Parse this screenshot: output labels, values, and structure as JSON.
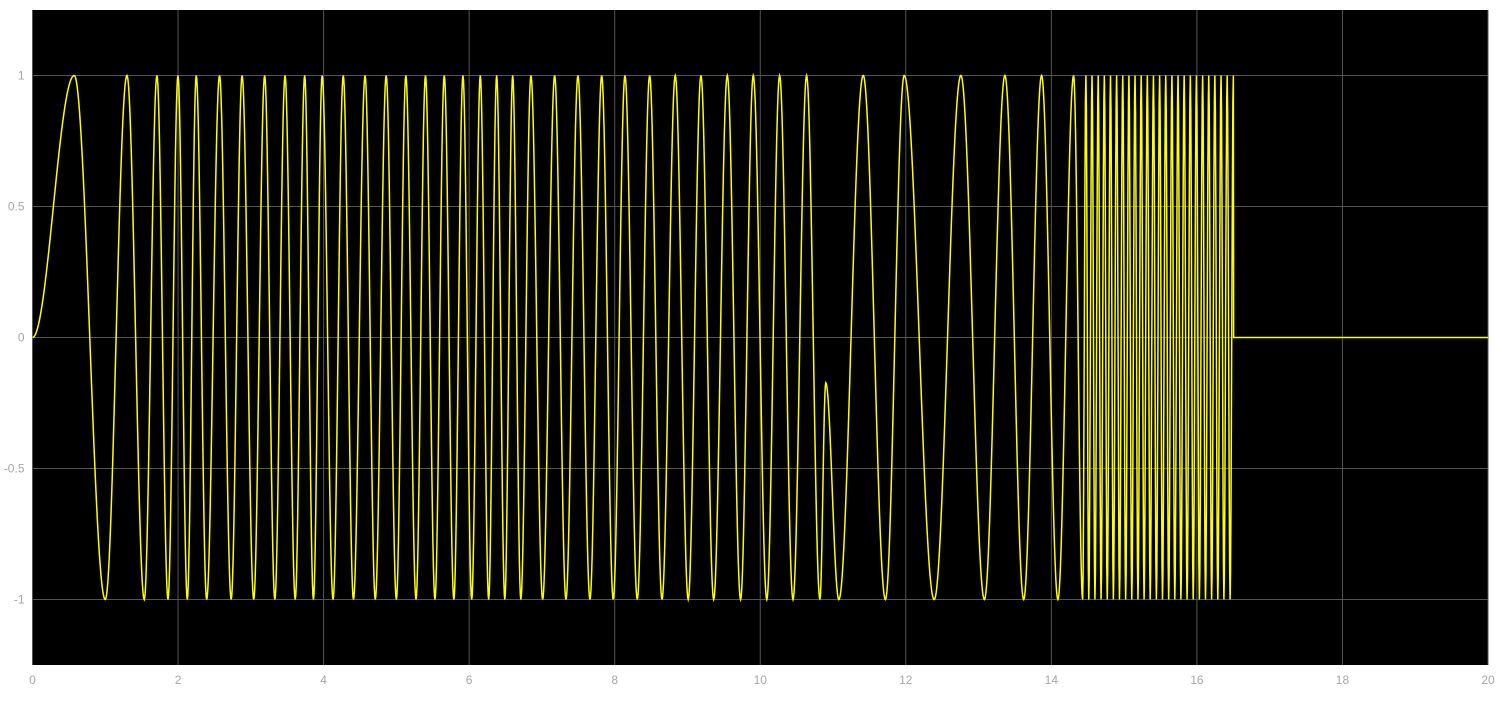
{
  "chart_data": {
    "type": "line",
    "title": "",
    "xlabel": "",
    "ylabel": "",
    "xlim": [
      0,
      20
    ],
    "ylim": [
      -1.25,
      1.25
    ],
    "xticks": [
      0,
      2,
      4,
      6,
      8,
      10,
      12,
      14,
      16,
      18,
      20
    ],
    "xtick_labels": [
      "0",
      "2",
      "4",
      "6",
      "8",
      "10",
      "12",
      "14",
      "16",
      "18",
      "20"
    ],
    "yticks": [
      1,
      0.5,
      0,
      -0.5,
      -1
    ],
    "ytick_labels": [
      "1",
      "0.5",
      "0",
      "-0.5",
      "-1"
    ],
    "grid": true,
    "legend": "none",
    "colors": {
      "plot_background": "#000000",
      "line": "#ffff00",
      "grid": "#555555",
      "tick_label": "#a6a6a6",
      "page_background": "#ffffff"
    },
    "series": [
      {
        "interpolation": "cosine between successive extrema",
        "extrema": [
          [
            0,
            0
          ],
          [
            0.574,
            1
          ],
          [
            1.0,
            -1
          ],
          [
            1.298,
            1
          ],
          [
            1.536,
            -1
          ],
          [
            1.71,
            1
          ],
          [
            1.862,
            -1
          ],
          [
            1.999,
            1
          ],
          [
            2.127,
            -1
          ],
          [
            2.25,
            1
          ],
          [
            2.393,
            -1
          ],
          [
            2.57,
            1
          ],
          [
            2.73,
            -1
          ],
          [
            2.88,
            1
          ],
          [
            3.04,
            -1
          ],
          [
            3.19,
            1
          ],
          [
            3.33,
            -1
          ],
          [
            3.47,
            1
          ],
          [
            3.61,
            -1
          ],
          [
            3.74,
            1
          ],
          [
            3.86,
            -1
          ],
          [
            3.98,
            1
          ],
          [
            4.13,
            -1
          ],
          [
            4.27,
            1
          ],
          [
            4.41,
            -1
          ],
          [
            4.57,
            1
          ],
          [
            4.71,
            -1
          ],
          [
            4.86,
            1
          ],
          [
            5.0,
            -1
          ],
          [
            5.13,
            1
          ],
          [
            5.27,
            -1
          ],
          [
            5.4,
            1
          ],
          [
            5.53,
            -1
          ],
          [
            5.658,
            1
          ],
          [
            5.79,
            -1
          ],
          [
            5.915,
            1
          ],
          [
            6.035,
            -1
          ],
          [
            6.153,
            1
          ],
          [
            6.268,
            -1
          ],
          [
            6.378,
            1
          ],
          [
            6.49,
            -1
          ],
          [
            6.598,
            1
          ],
          [
            6.71,
            -1
          ],
          [
            6.849,
            1
          ],
          [
            7.01,
            -1
          ],
          [
            7.175,
            1
          ],
          [
            7.33,
            -1
          ],
          [
            7.495,
            1
          ],
          [
            7.66,
            -1
          ],
          [
            7.821,
            1
          ],
          [
            7.98,
            -1
          ],
          [
            8.141,
            1
          ],
          [
            8.31,
            -1
          ],
          [
            8.48,
            1
          ],
          [
            8.65,
            -1
          ],
          [
            8.832,
            1
          ],
          [
            9.01,
            -1
          ],
          [
            9.185,
            1
          ],
          [
            9.36,
            -1
          ],
          [
            9.547,
            1
          ],
          [
            9.73,
            -1
          ],
          [
            9.904,
            1
          ],
          [
            10.09,
            -1
          ],
          [
            10.266,
            1
          ],
          [
            10.45,
            -1
          ],
          [
            10.637,
            1
          ],
          [
            10.82,
            -1
          ],
          [
            10.9,
            -0.173
          ],
          [
            11.08,
            -1
          ],
          [
            11.415,
            1
          ],
          [
            11.72,
            -1
          ],
          [
            11.978,
            1
          ],
          [
            12.39,
            -1
          ],
          [
            12.757,
            1
          ],
          [
            13.08,
            -1
          ],
          [
            13.362,
            1
          ],
          [
            13.62,
            -1
          ],
          [
            13.866,
            1
          ],
          [
            14.09,
            -1
          ],
          [
            14.306,
            1
          ],
          [
            14.43,
            -1
          ],
          [
            14.475,
            1
          ],
          [
            14.514,
            -1
          ],
          [
            14.559,
            1
          ],
          [
            14.599,
            -1
          ],
          [
            14.644,
            1
          ],
          [
            14.683,
            -1
          ],
          [
            14.728,
            1
          ],
          [
            14.768,
            -1
          ],
          [
            14.813,
            1
          ],
          [
            14.852,
            -1
          ],
          [
            14.897,
            1
          ],
          [
            14.936,
            -1
          ],
          [
            14.981,
            1
          ],
          [
            15.021,
            -1
          ],
          [
            15.066,
            1
          ],
          [
            15.105,
            -1
          ],
          [
            15.15,
            1
          ],
          [
            15.19,
            -1
          ],
          [
            15.235,
            1
          ],
          [
            15.274,
            -1
          ],
          [
            15.319,
            1
          ],
          [
            15.358,
            -1
          ],
          [
            15.403,
            1
          ],
          [
            15.443,
            -1
          ],
          [
            15.488,
            1
          ],
          [
            15.527,
            -1
          ],
          [
            15.572,
            1
          ],
          [
            15.612,
            -1
          ],
          [
            15.657,
            1
          ],
          [
            15.696,
            -1
          ],
          [
            15.741,
            1
          ],
          [
            15.78,
            -1
          ],
          [
            15.825,
            1
          ],
          [
            15.865,
            -1
          ],
          [
            15.91,
            1
          ],
          [
            15.949,
            -1
          ],
          [
            15.994,
            1
          ],
          [
            16.034,
            -1
          ],
          [
            16.079,
            1
          ],
          [
            16.118,
            -1
          ],
          [
            16.163,
            1
          ],
          [
            16.202,
            -1
          ],
          [
            16.247,
            1
          ],
          [
            16.287,
            -1
          ],
          [
            16.332,
            1
          ],
          [
            16.371,
            -1
          ],
          [
            16.416,
            1
          ],
          [
            16.456,
            -1
          ],
          [
            16.501,
            1
          ],
          [
            16.505,
            0
          ],
          [
            20,
            0
          ]
        ]
      }
    ]
  }
}
